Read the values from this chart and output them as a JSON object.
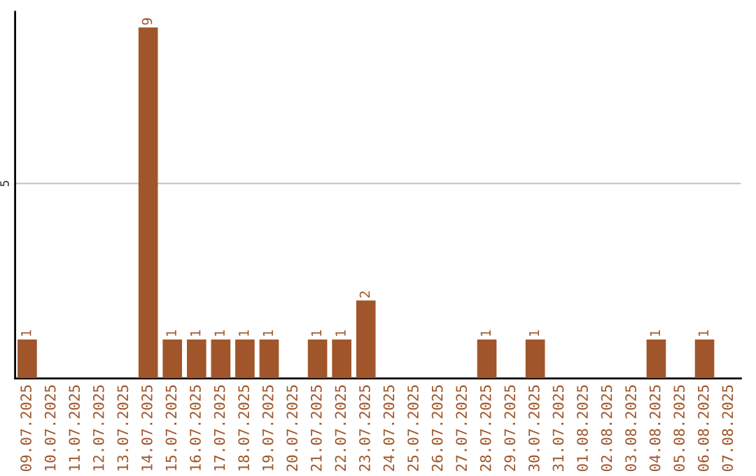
{
  "chart_data": {
    "type": "bar",
    "categories": [
      "09.07.2025",
      "10.07.2025",
      "11.07.2025",
      "12.07.2025",
      "13.07.2025",
      "14.07.2025",
      "15.07.2025",
      "16.07.2025",
      "17.07.2025",
      "18.07.2025",
      "19.07.2025",
      "20.07.2025",
      "21.07.2025",
      "22.07.2025",
      "23.07.2025",
      "24.07.2025",
      "25.07.2025",
      "26.07.2025",
      "27.07.2025",
      "28.07.2025",
      "29.07.2025",
      "30.07.2025",
      "31.07.2025",
      "01.08.2025",
      "02.08.2025",
      "03.08.2025",
      "04.08.2025",
      "05.08.2025",
      "06.08.2025",
      "07.08.2025"
    ],
    "values": [
      1,
      0,
      0,
      0,
      0,
      9,
      1,
      1,
      1,
      1,
      1,
      0,
      1,
      1,
      2,
      0,
      0,
      0,
      0,
      1,
      0,
      1,
      0,
      0,
      0,
      0,
      1,
      0,
      1,
      0
    ],
    "value_labels": [
      "1",
      null,
      null,
      null,
      null,
      "9",
      "1",
      "1",
      "1",
      "1",
      "1",
      null,
      "1",
      "1",
      "2",
      null,
      null,
      null,
      null,
      "1",
      null,
      "1",
      null,
      null,
      null,
      null,
      "1",
      null,
      "1",
      null
    ],
    "color": "#a0562a",
    "ylim": [
      0,
      9.4
    ],
    "yticks": [
      5
    ],
    "grid": "y"
  }
}
